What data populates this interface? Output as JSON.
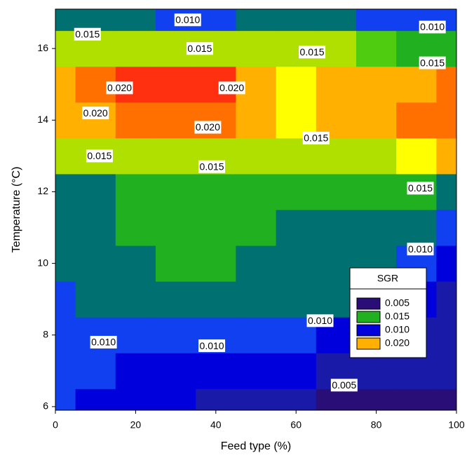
{
  "chart_data": {
    "type": "contour",
    "x_label": "Feed type (%)",
    "y_label": "Temperature (°C)",
    "xlim": [
      0,
      100
    ],
    "ylim": [
      5.9,
      17.1
    ],
    "xticks": [
      0,
      20,
      40,
      60,
      80,
      100
    ],
    "yticks": [
      6,
      8,
      10,
      12,
      14,
      16
    ],
    "x": [
      0,
      10,
      20,
      30,
      40,
      50,
      60,
      70,
      80,
      90,
      100
    ],
    "y": [
      6,
      7,
      8,
      9,
      10,
      11,
      12,
      13,
      14,
      15,
      16,
      17
    ],
    "z": [
      [
        0.009,
        0.008,
        0.008,
        0.007,
        0.006,
        0.006,
        0.005,
        0.004,
        0.004,
        0.004,
        0.004
      ],
      [
        0.009,
        0.009,
        0.008,
        0.008,
        0.008,
        0.008,
        0.007,
        0.006,
        0.005,
        0.005,
        0.005
      ],
      [
        0.01,
        0.01,
        0.009,
        0.009,
        0.009,
        0.009,
        0.009,
        0.008,
        0.007,
        0.006,
        0.005
      ],
      [
        0.01,
        0.011,
        0.011,
        0.012,
        0.012,
        0.012,
        0.012,
        0.012,
        0.009,
        0.008,
        0.006
      ],
      [
        0.011,
        0.012,
        0.012,
        0.013,
        0.013,
        0.012,
        0.012,
        0.012,
        0.011,
        0.009,
        0.008
      ],
      [
        0.011,
        0.012,
        0.013,
        0.014,
        0.014,
        0.014,
        0.012,
        0.012,
        0.012,
        0.011,
        0.01
      ],
      [
        0.012,
        0.012,
        0.013,
        0.014,
        0.014,
        0.014,
        0.014,
        0.013,
        0.013,
        0.013,
        0.012
      ],
      [
        0.016,
        0.016,
        0.016,
        0.016,
        0.016,
        0.016,
        0.016,
        0.016,
        0.017,
        0.018,
        0.019
      ],
      [
        0.019,
        0.02,
        0.021,
        0.021,
        0.021,
        0.019,
        0.018,
        0.019,
        0.02,
        0.021,
        0.021
      ],
      [
        0.02,
        0.021,
        0.022,
        0.023,
        0.022,
        0.02,
        0.018,
        0.019,
        0.019,
        0.02,
        0.021
      ],
      [
        0.016,
        0.017,
        0.017,
        0.017,
        0.017,
        0.016,
        0.016,
        0.016,
        0.015,
        0.014,
        0.013
      ],
      [
        0.012,
        0.012,
        0.011,
        0.01,
        0.01,
        0.011,
        0.012,
        0.012,
        0.01,
        0.009,
        0.009
      ]
    ],
    "levels": [
      0.005,
      0.007,
      0.009,
      0.011,
      0.013,
      0.0145,
      0.016,
      0.0175,
      0.019,
      0.0205,
      0.022
    ],
    "colors": [
      "#2a0e78",
      "#1a1aa8",
      "#0000dd",
      "#1040f0",
      "#007070",
      "#20b020",
      "#50cc10",
      "#b0e000",
      "#ffff00",
      "#ffb000",
      "#ff7000",
      "#ff3010"
    ],
    "contour_labels": [
      {
        "value": 0.01,
        "label": "0.010",
        "x": 33,
        "y": 16.8
      },
      {
        "value": 0.015,
        "label": "0.015",
        "x": 8,
        "y": 16.4
      },
      {
        "value": 0.015,
        "label": "0.015",
        "x": 36,
        "y": 16.0
      },
      {
        "value": 0.015,
        "label": "0.015",
        "x": 64,
        "y": 15.9
      },
      {
        "value": 0.01,
        "label": "0.010",
        "x": 94,
        "y": 16.6
      },
      {
        "value": 0.015,
        "label": "0.015",
        "x": 94,
        "y": 15.6
      },
      {
        "value": 0.02,
        "label": "0.020",
        "x": 16,
        "y": 14.9
      },
      {
        "value": 0.02,
        "label": "0.020",
        "x": 44,
        "y": 14.9
      },
      {
        "value": 0.02,
        "label": "0.020",
        "x": 10,
        "y": 14.2
      },
      {
        "value": 0.02,
        "label": "0.020",
        "x": 38,
        "y": 13.8
      },
      {
        "value": 0.015,
        "label": "0.015",
        "x": 11,
        "y": 13.0
      },
      {
        "value": 0.015,
        "label": "0.015",
        "x": 39,
        "y": 12.7
      },
      {
        "value": 0.015,
        "label": "0.015",
        "x": 65,
        "y": 13.5
      },
      {
        "value": 0.015,
        "label": "0.015",
        "x": 91,
        "y": 12.1
      },
      {
        "value": 0.01,
        "label": "0.010",
        "x": 91,
        "y": 10.4
      },
      {
        "value": 0.01,
        "label": "0.010",
        "x": 66,
        "y": 8.4
      },
      {
        "value": 0.01,
        "label": "0.010",
        "x": 12,
        "y": 7.8
      },
      {
        "value": 0.01,
        "label": "0.010",
        "x": 39,
        "y": 7.7
      },
      {
        "value": 0.005,
        "label": "0.005",
        "x": 72,
        "y": 6.6
      }
    ],
    "legend": {
      "title": "SGR",
      "entries": [
        {
          "label": "0.005",
          "color": "#2a0e78"
        },
        {
          "label": "0.015",
          "color": "#20b020"
        },
        {
          "label": "0.010",
          "color": "#0000dd"
        },
        {
          "label": "0.020",
          "color": "#ffb000"
        }
      ]
    }
  }
}
